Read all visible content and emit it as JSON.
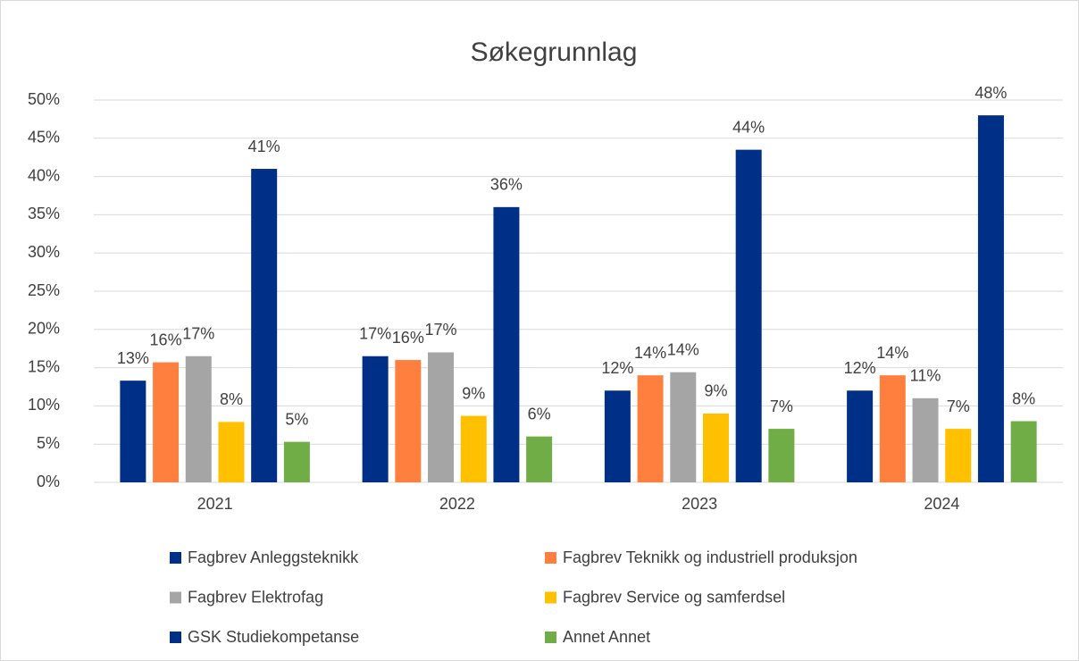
{
  "chart_data": {
    "type": "bar",
    "title": "Søkegrunnlag",
    "categories": [
      "2021",
      "2022",
      "2023",
      "2024"
    ],
    "series": [
      {
        "name": "Fagbrev Anleggsteknikk",
        "color": "#002f87",
        "values": [
          13.3,
          16.5,
          12,
          12
        ],
        "value_labels": [
          "13%",
          "17%",
          "12%",
          "12%"
        ]
      },
      {
        "name": "Fagbrev Teknikk og industriell produksjon",
        "color": "#ff7f3f",
        "values": [
          15.7,
          16,
          14,
          14
        ],
        "value_labels": [
          "16%",
          "16%",
          "14%",
          "14%"
        ]
      },
      {
        "name": "Fagbrev Elektrofag",
        "color": "#a5a5a5",
        "values": [
          16.5,
          17,
          14.4,
          11
        ],
        "value_labels": [
          "17%",
          "17%",
          "14%",
          "11%"
        ]
      },
      {
        "name": "Fagbrev Service og samferdsel",
        "color": "#ffc000",
        "values": [
          7.9,
          8.7,
          9,
          7
        ],
        "value_labels": [
          "8%",
          "9%",
          "9%",
          "7%"
        ]
      },
      {
        "name": "GSK Studiekompetanse",
        "color": "#002f87",
        "values": [
          41,
          36,
          43.5,
          48
        ],
        "value_labels": [
          "41%",
          "36%",
          "44%",
          "48%"
        ]
      },
      {
        "name": "Annet Annet",
        "color": "#70ad47",
        "values": [
          5.3,
          6,
          7,
          8
        ],
        "value_labels": [
          "5%",
          "6%",
          "7%",
          "8%"
        ]
      }
    ],
    "ylim": [
      0,
      50
    ],
    "yticks": [
      {
        "value": 0,
        "label": "0%"
      },
      {
        "value": 5,
        "label": "5%"
      },
      {
        "value": 10,
        "label": "10%"
      },
      {
        "value": 15,
        "label": "15%"
      },
      {
        "value": 20,
        "label": "20%"
      },
      {
        "value": 25,
        "label": "25%"
      },
      {
        "value": 30,
        "label": "30%"
      },
      {
        "value": 35,
        "label": "35%"
      },
      {
        "value": 40,
        "label": "40%"
      },
      {
        "value": 45,
        "label": "45%"
      },
      {
        "value": 50,
        "label": "50%"
      }
    ],
    "grid": true,
    "legend": "bottom"
  }
}
